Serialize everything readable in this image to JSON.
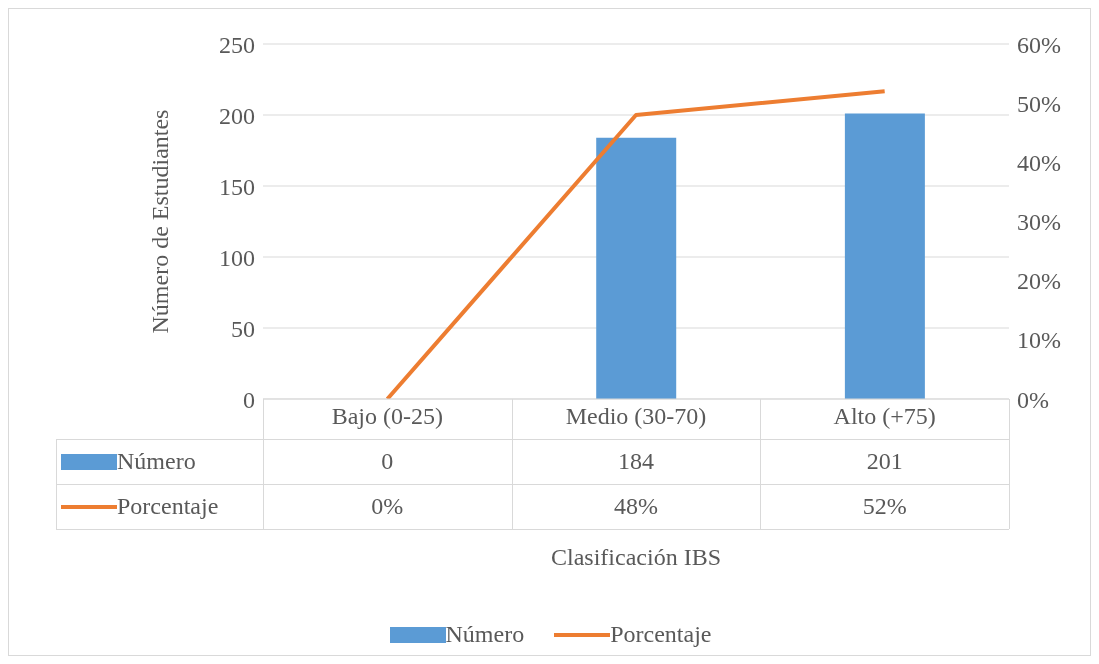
{
  "chart_data": {
    "type": "bar",
    "xlabel": "Clasificación IBS",
    "ylabel": "Número de Estudiantes",
    "categories": [
      "Bajo (0-25)",
      "Medio (30-70)",
      "Alto (+75)"
    ],
    "series": [
      {
        "name": "Número",
        "color": "#5b9bd5",
        "values": [
          0,
          184,
          201
        ],
        "value_labels": [
          "0",
          "184",
          "201"
        ]
      },
      {
        "name": "Porcentaje",
        "type": "line",
        "axis": "y2",
        "color": "#ed7d31",
        "values": [
          0,
          48,
          52
        ],
        "value_labels": [
          "0%",
          "48%",
          "52%"
        ]
      }
    ],
    "ylim": [
      0,
      250
    ],
    "yticks": [
      0,
      50,
      100,
      150,
      200,
      250
    ],
    "y2lim": [
      0,
      60
    ],
    "y2ticks": [
      {
        "value": 0,
        "label": "0%"
      },
      {
        "value": 10,
        "label": "10%"
      },
      {
        "value": 20,
        "label": "20%"
      },
      {
        "value": 30,
        "label": "30%"
      },
      {
        "value": 40,
        "label": "40%"
      },
      {
        "value": 50,
        "label": "50%"
      },
      {
        "value": 60,
        "label": "60%"
      }
    ],
    "grid": "y",
    "legend": "bottom",
    "marker": "none",
    "line_style": "solid"
  }
}
